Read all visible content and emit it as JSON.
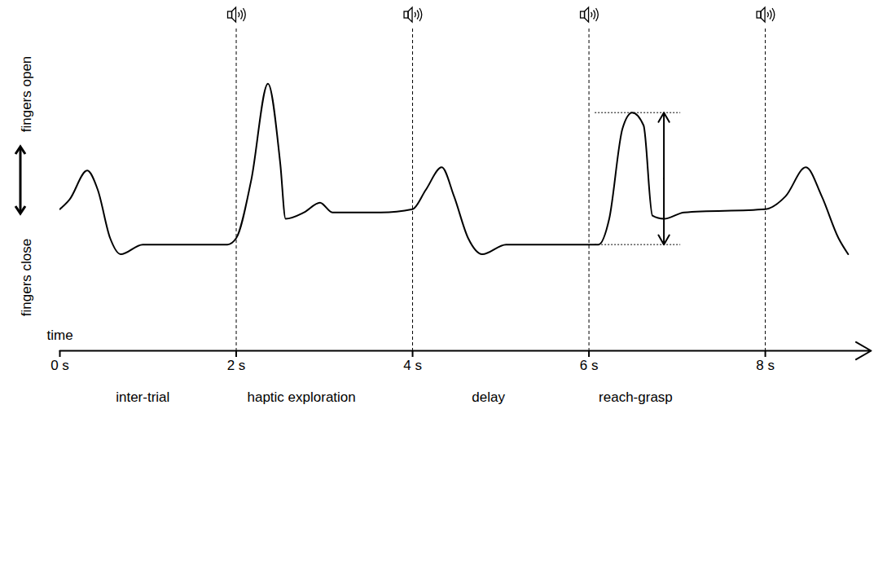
{
  "chart_data": {
    "type": "line",
    "x_label": "time",
    "y_labels": {
      "high": "fingers open",
      "low": "fingers close"
    },
    "x": [
      0,
      0.11,
      0.31,
      0.43,
      0.57,
      0.69,
      0.94,
      1.9,
      2.0,
      2.17,
      2.36,
      2.5,
      2.56,
      2.77,
      2.95,
      3.09,
      3.37,
      3.64,
      4.0,
      4.15,
      4.33,
      4.47,
      4.63,
      4.79,
      5.06,
      6.11,
      6.23,
      6.38,
      6.49,
      6.62,
      6.72,
      6.85,
      7.08,
      8.0,
      8.23,
      8.46,
      8.64,
      8.83,
      8.94
    ],
    "values": [
      44,
      47,
      56,
      50,
      35,
      30,
      33,
      33,
      35,
      53,
      83,
      58,
      41,
      43,
      46,
      43,
      43,
      43,
      44,
      50,
      57,
      48,
      35,
      30,
      33,
      33,
      41,
      69,
      74,
      70,
      42,
      41,
      43,
      44,
      48,
      57,
      48,
      35,
      30
    ],
    "color": "#000000",
    "xlim": [
      0,
      9.2
    ],
    "xticks": [
      {
        "value": 0,
        "label": "0 s"
      },
      {
        "value": 2,
        "label": "2 s"
      },
      {
        "value": 4,
        "label": "4 s"
      },
      {
        "value": 6,
        "label": "6 s"
      },
      {
        "value": 8,
        "label": "8 s"
      }
    ],
    "ylim": [
      0,
      100
    ],
    "tick_labels": "x",
    "events": [
      2,
      4,
      6,
      8
    ],
    "phases": [
      {
        "label": "inter-trial",
        "x": 0.94
      },
      {
        "label": "haptic exploration",
        "x": 2.74
      },
      {
        "label": "delay",
        "x": 4.86
      },
      {
        "label": "reach-grasp",
        "x": 6.53
      }
    ],
    "amplitude_marker": {
      "x": 6.85,
      "low": 33,
      "high": 74,
      "xmin": 6.07,
      "xmax": 7.04
    }
  }
}
